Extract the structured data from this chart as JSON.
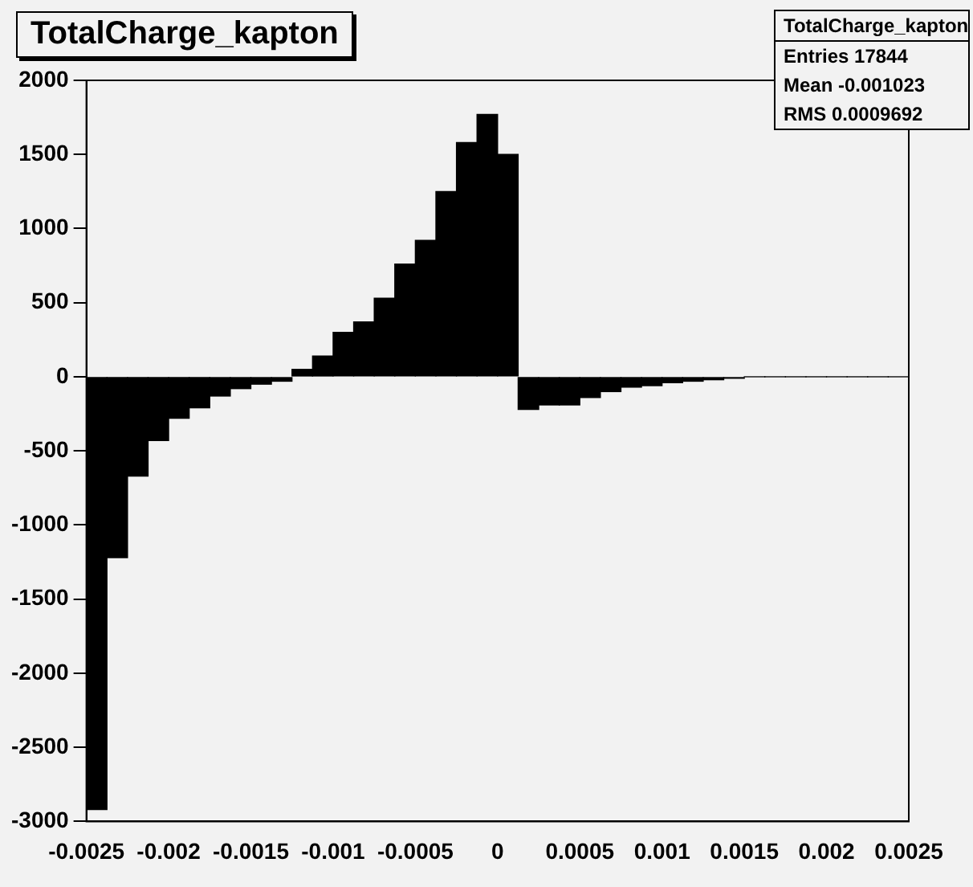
{
  "chart_data": {
    "type": "histogram",
    "title": "TotalCharge_kapton",
    "annotations": [
      "TotalCharge_kapton",
      "Entries 17844",
      "Mean -0.001023",
      "RMS 0.0009692"
    ],
    "bins": [
      -0.0025,
      -0.002375,
      -0.00225,
      -0.002125,
      -0.002,
      -0.001875,
      -0.00175,
      -0.001625,
      -0.0015,
      -0.001375,
      -0.00125,
      -0.001125,
      -0.001,
      -0.000875,
      -0.00075,
      -0.000625,
      -0.0005,
      -0.000375,
      -0.00025,
      -0.000125,
      0,
      0.000125,
      0.00025,
      0.000375,
      0.0005,
      0.000625,
      0.00075,
      0.000875,
      0.001,
      0.001125,
      0.00125,
      0.001375,
      0.0015,
      0.001625,
      0.00175,
      0.001875,
      0.002,
      0.002125,
      0.00225,
      0.002375,
      0.0025
    ],
    "values": [
      -2920,
      -1220,
      -670,
      -430,
      -280,
      -210,
      -130,
      -80,
      -50,
      -30,
      50,
      140,
      300,
      370,
      530,
      760,
      920,
      1250,
      1580,
      1770,
      1500,
      -220,
      -190,
      -190,
      -140,
      -100,
      -70,
      -60,
      -40,
      -30,
      -20,
      -10,
      0,
      0,
      0,
      0,
      0,
      0,
      0,
      0
    ],
    "color": "#000000",
    "xlim": [
      -0.0025,
      0.0025
    ],
    "xticks": [
      -0.0025,
      -0.002,
      -0.0015,
      -0.001,
      -0.0005,
      0,
      0.0005,
      0.001,
      0.0015,
      0.002,
      0.0025
    ],
    "ylim": [
      -3000,
      2000
    ],
    "yticks": [
      -3000,
      -2500,
      -2000,
      -1500,
      -1000,
      -500,
      0,
      500,
      1000,
      1500,
      2000
    ],
    "grid": false,
    "legend": false
  }
}
